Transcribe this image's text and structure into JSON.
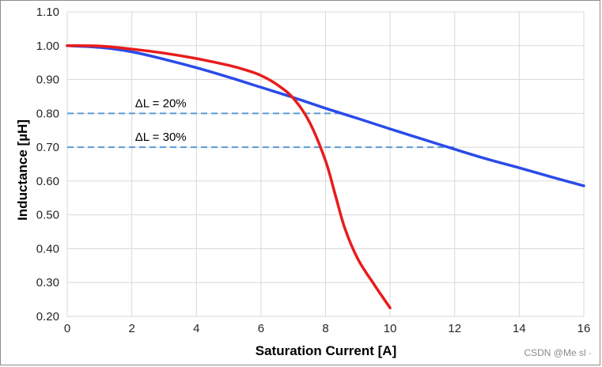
{
  "chart_data": {
    "type": "line",
    "title": "",
    "xlabel": "Saturation Current [A]",
    "ylabel": "Inductance [µH]",
    "xlim": [
      0,
      16
    ],
    "ylim": [
      0.2,
      1.1
    ],
    "x_ticks": [
      "0",
      "2",
      "4",
      "6",
      "8",
      "10",
      "12",
      "14",
      "16"
    ],
    "y_ticks": [
      "0.20",
      "0.30",
      "0.40",
      "0.50",
      "0.60",
      "0.70",
      "0.80",
      "0.90",
      "1.00",
      "1.10"
    ],
    "grid": true,
    "legend": "none",
    "series": [
      {
        "color": "#2b4be8",
        "x": [
          0,
          1,
          2,
          3,
          4,
          5,
          6,
          7,
          8,
          9,
          10,
          11,
          12,
          13,
          14,
          15,
          16
        ],
        "y": [
          1.0,
          0.995,
          0.982,
          0.96,
          0.935,
          0.907,
          0.877,
          0.847,
          0.815,
          0.785,
          0.754,
          0.724,
          0.694,
          0.665,
          0.639,
          0.612,
          0.586
        ]
      },
      {
        "color": "#e81c1c",
        "x": [
          0,
          1,
          2,
          3,
          4,
          5,
          5.5,
          6,
          6.5,
          7,
          7.5,
          8,
          8.3,
          8.6,
          9,
          9.5,
          10
        ],
        "y": [
          1.0,
          0.999,
          0.99,
          0.978,
          0.962,
          0.942,
          0.929,
          0.912,
          0.885,
          0.845,
          0.775,
          0.66,
          0.56,
          0.46,
          0.37,
          0.295,
          0.225
        ]
      }
    ],
    "reference_lines": [
      {
        "label": "ΔL = 20%",
        "y": 0.8,
        "x": [
          0,
          8.5
        ],
        "color": "#5b9bd5"
      },
      {
        "label": "ΔL = 30%",
        "y": 0.7,
        "x": [
          0,
          12
        ],
        "color": "#5b9bd5"
      }
    ]
  },
  "watermark": "CSDN @Me sl ·"
}
